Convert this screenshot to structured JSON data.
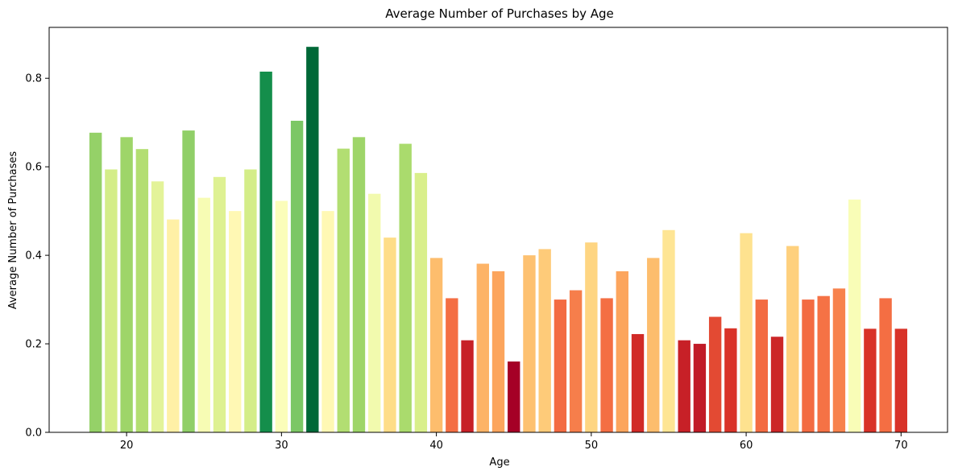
{
  "chart_data": {
    "type": "bar",
    "title": "Average Number of Purchases by Age",
    "xlabel": "Age",
    "ylabel": "Average Number of Purchases",
    "xlim": [
      15,
      73
    ],
    "ylim": [
      0,
      0.915
    ],
    "xticks": [
      20,
      30,
      40,
      50,
      60,
      70
    ],
    "yticks": [
      0.0,
      0.2,
      0.4,
      0.6,
      0.8
    ],
    "ytick_labels": [
      "0.0",
      "0.2",
      "0.4",
      "0.6",
      "0.8"
    ],
    "grid": false,
    "legend": "none",
    "colormap": "RdYlGn",
    "x": [
      18,
      19,
      20,
      21,
      22,
      23,
      24,
      25,
      26,
      27,
      28,
      29,
      30,
      31,
      32,
      33,
      34,
      35,
      36,
      37,
      38,
      39,
      40,
      41,
      42,
      43,
      44,
      45,
      46,
      47,
      48,
      49,
      50,
      51,
      52,
      53,
      54,
      55,
      56,
      57,
      58,
      59,
      60,
      61,
      62,
      63,
      64,
      65,
      66,
      67,
      68,
      69,
      70
    ],
    "values": [
      0.677,
      0.594,
      0.667,
      0.64,
      0.567,
      0.481,
      0.682,
      0.53,
      0.577,
      0.5,
      0.594,
      0.815,
      0.523,
      0.704,
      0.871,
      0.5,
      0.641,
      0.667,
      0.539,
      0.44,
      0.652,
      0.586,
      0.394,
      0.303,
      0.208,
      0.381,
      0.364,
      0.16,
      0.4,
      0.414,
      0.3,
      0.321,
      0.429,
      0.303,
      0.364,
      0.222,
      0.394,
      0.457,
      0.208,
      0.2,
      0.261,
      0.235,
      0.45,
      0.3,
      0.216,
      0.421,
      0.3,
      0.308,
      0.325,
      0.526,
      0.234,
      0.303,
      0.234
    ]
  }
}
